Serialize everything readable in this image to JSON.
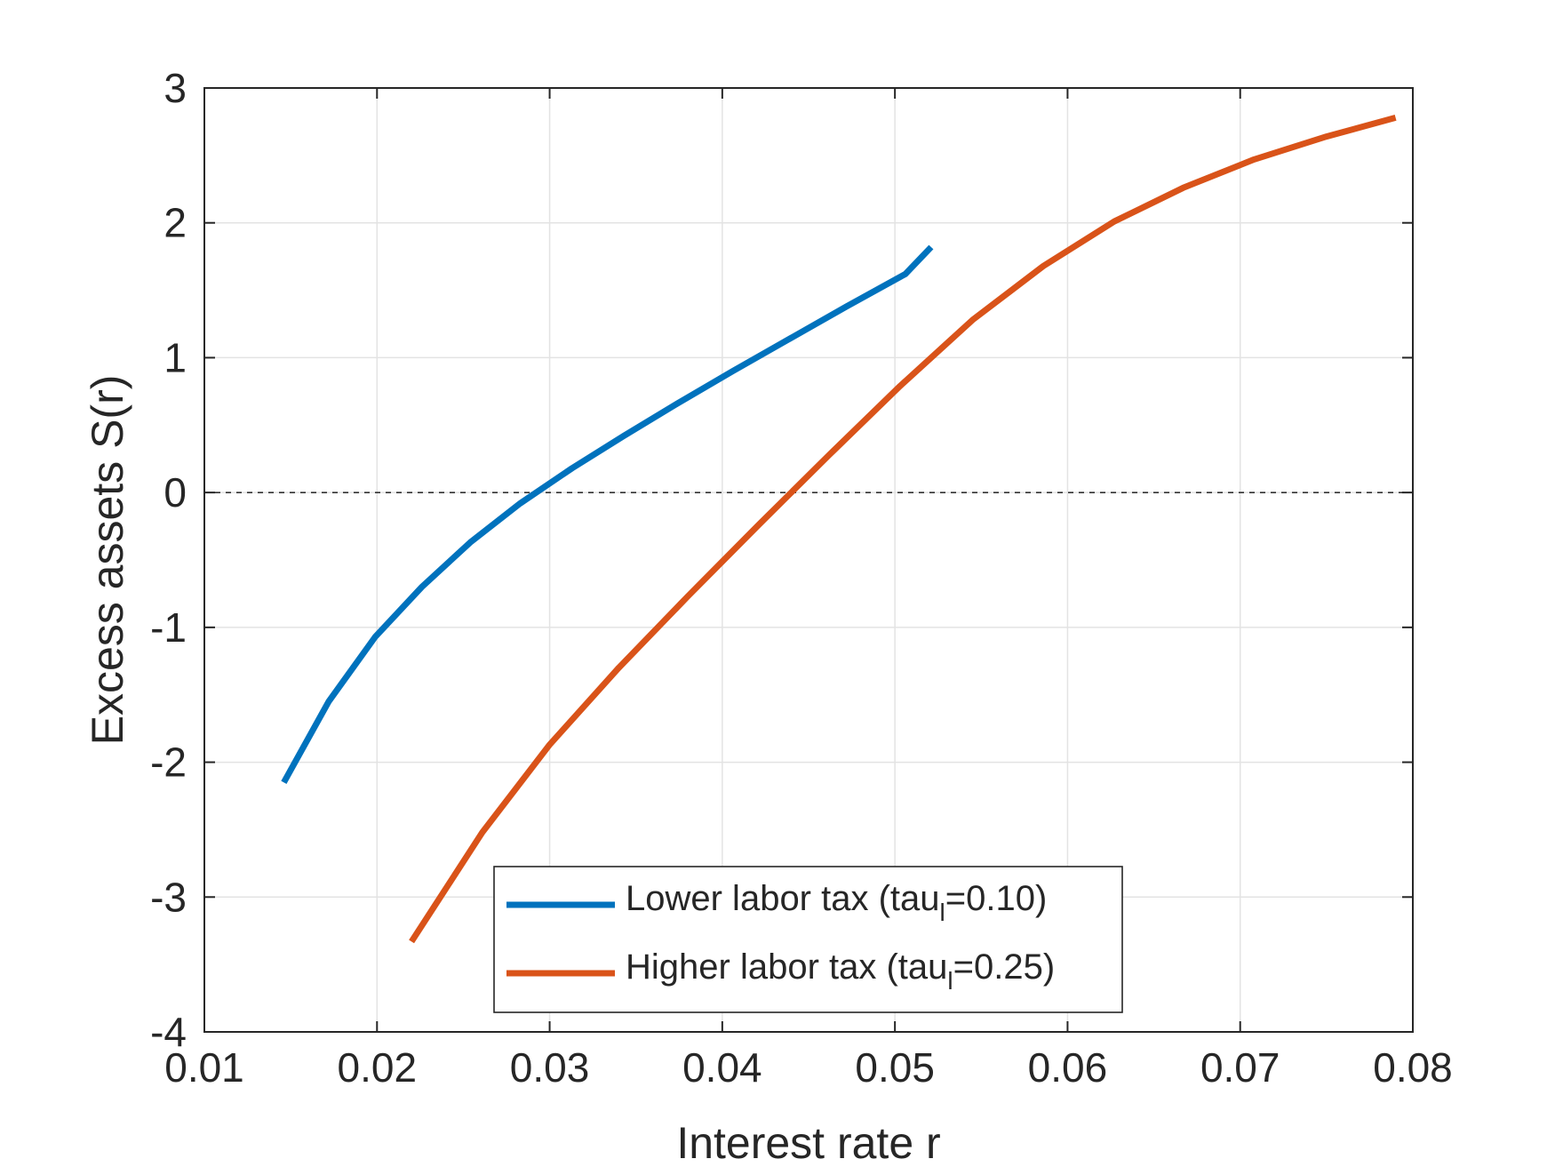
{
  "chart_data": {
    "type": "line",
    "title": "",
    "xlabel": "Interest rate r",
    "ylabel": "Excess assets S(r)",
    "xlim": [
      0.01,
      0.08
    ],
    "ylim": [
      -4,
      3
    ],
    "x_ticks": [
      0.01,
      0.02,
      0.03,
      0.04,
      0.05,
      0.06,
      0.07,
      0.08
    ],
    "x_tick_labels": [
      "0.01",
      "0.02",
      "0.03",
      "0.04",
      "0.05",
      "0.06",
      "0.07",
      "0.08"
    ],
    "y_ticks": [
      -4,
      -3,
      -2,
      -1,
      0,
      1,
      2,
      3
    ],
    "y_tick_labels": [
      "-4",
      "-3",
      "-2",
      "-1",
      "0",
      "1",
      "2",
      "3"
    ],
    "grid": true,
    "reference_line": {
      "y": 0,
      "style": "dashed"
    },
    "legend": {
      "position": "bottom-center"
    },
    "series": [
      {
        "name": "Lower labor tax (tau_l=0.10)",
        "legend_parts": {
          "before": "Lower labor tax (tau",
          "sub": "l",
          "after": "=0.10)"
        },
        "color": "#0072BD",
        "x": [
          0.0146,
          0.0172,
          0.0199,
          0.0226,
          0.0254,
          0.0283,
          0.0313,
          0.0343,
          0.0374,
          0.0406,
          0.0439,
          0.0472,
          0.0506,
          0.0521
        ],
        "y": [
          -2.15,
          -1.55,
          -1.07,
          -0.7,
          -0.37,
          -0.08,
          0.18,
          0.42,
          0.66,
          0.9,
          1.14,
          1.38,
          1.62,
          1.82
        ]
      },
      {
        "name": "Higher labor tax (tau_l=0.25)",
        "legend_parts": {
          "before": "Higher labor tax (tau",
          "sub": "l",
          "after": "=0.25)"
        },
        "color": "#D95319",
        "x": [
          0.022,
          0.0261,
          0.03,
          0.034,
          0.038,
          0.0421,
          0.0462,
          0.0503,
          0.0545,
          0.0586,
          0.0627,
          0.0667,
          0.0708,
          0.075,
          0.079
        ],
        "y": [
          -3.33,
          -2.52,
          -1.87,
          -1.3,
          -0.77,
          -0.24,
          0.28,
          0.79,
          1.28,
          1.68,
          2.01,
          2.26,
          2.47,
          2.64,
          2.78
        ]
      }
    ]
  }
}
